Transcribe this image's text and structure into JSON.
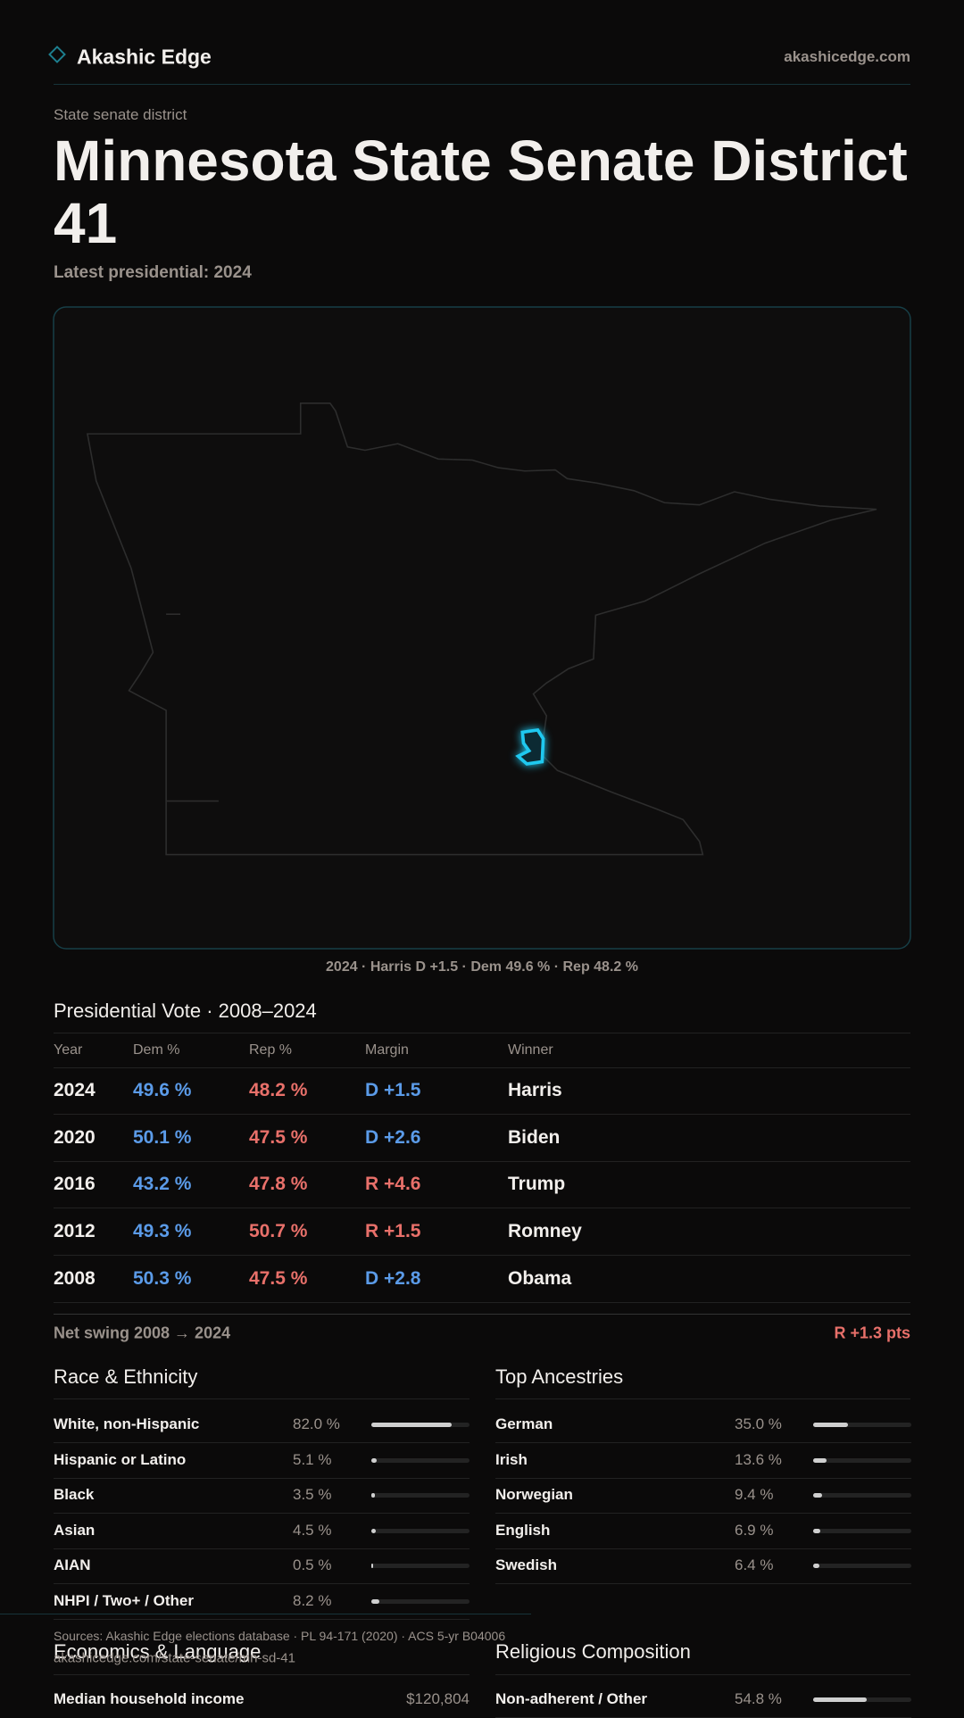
{
  "header": {
    "brand": "Akashic Edge",
    "domain": "akashicedge.com"
  },
  "hero": {
    "eyebrow": "State senate district",
    "title": "Minnesota State Senate District 41",
    "subtitle": "Latest presidential: 2024"
  },
  "map": {
    "caption": "2024 · Harris D +1.5 · Dem 49.6 % · Rep 48.2 %"
  },
  "table": {
    "title": "Presidential Vote · 2008–2024",
    "columns": [
      "Year",
      "Dem %",
      "Rep %",
      "Margin",
      "Winner"
    ],
    "rows": [
      [
        "2024",
        "49.6 %",
        "48.2 %",
        "D +1.5",
        "Harris"
      ],
      [
        "2020",
        "50.1 %",
        "47.5 %",
        "D +2.6",
        "Biden"
      ],
      [
        "2016",
        "43.2 %",
        "47.8 %",
        "R +4.6",
        "Trump"
      ],
      [
        "2012",
        "49.3 %",
        "50.7 %",
        "R +1.5",
        "Romney"
      ],
      [
        "2008",
        "50.3 %",
        "47.5 %",
        "D +2.8",
        "Obama"
      ]
    ]
  },
  "swing": {
    "label": "Net swing 2008 → 2024",
    "value": "R +1.3 pts"
  },
  "race": {
    "title": "Race & Ethnicity",
    "rows": [
      {
        "label": "White, non-Hispanic",
        "value": 82.0,
        "value_label": "82.0 %"
      },
      {
        "label": "Hispanic or Latino",
        "value": 5.1,
        "value_label": "5.1 %"
      },
      {
        "label": "Black",
        "value": 3.5,
        "value_label": "3.5 %"
      },
      {
        "label": "Asian",
        "value": 4.5,
        "value_label": "4.5 %"
      },
      {
        "label": "AIAN",
        "value": 0.5,
        "value_label": "0.5 %"
      },
      {
        "label": "NHPI / Two+ / Other",
        "value": 8.2,
        "value_label": "8.2 %"
      }
    ]
  },
  "ancestry": {
    "title": "Top Ancestries",
    "rows": [
      {
        "label": "German",
        "value": 35.0,
        "value_label": "35.0 %"
      },
      {
        "label": "Irish",
        "value": 13.6,
        "value_label": "13.6 %"
      },
      {
        "label": "Norwegian",
        "value": 9.4,
        "value_label": "9.4 %"
      },
      {
        "label": "English",
        "value": 6.9,
        "value_label": "6.9 %"
      },
      {
        "label": "Swedish",
        "value": 6.4,
        "value_label": "6.4 %"
      }
    ]
  },
  "economics": {
    "title": "Economics & Language",
    "rows": [
      {
        "label": "Median household income",
        "value": "$120,804"
      }
    ]
  },
  "religion": {
    "title": "Religious Composition",
    "rows": [
      {
        "label": "Non-adherent / Other",
        "value": 54.8,
        "value_label": "54.8 %"
      }
    ]
  },
  "footer": {
    "sources": "Sources: Akashic Edge elections database · PL 94-171 (2020) · ACS 5-yr B04006",
    "url": "akashicedge.com/state-senate/mn-sd-41"
  }
}
